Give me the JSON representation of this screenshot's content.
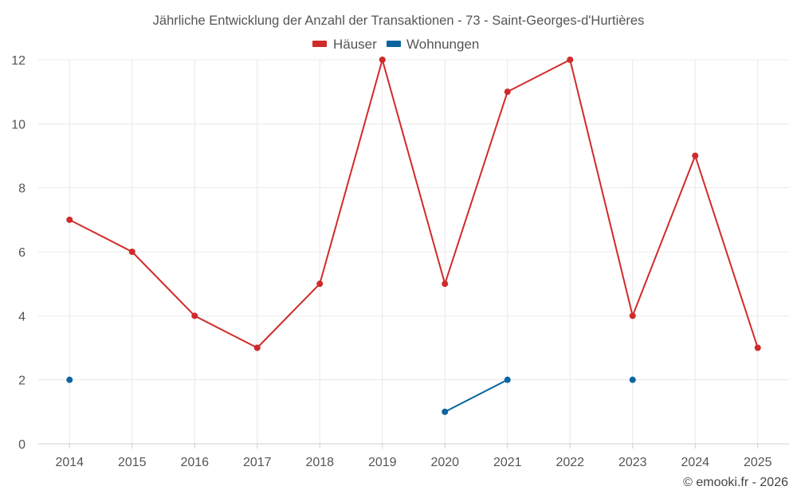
{
  "chart_data": {
    "type": "line",
    "title": "Jährliche Entwicklung der Anzahl der Transaktionen - 73 - Saint-Georges-d'Hurtières",
    "categories": [
      "2014",
      "2015",
      "2016",
      "2017",
      "2018",
      "2019",
      "2020",
      "2021",
      "2022",
      "2023",
      "2024",
      "2025"
    ],
    "series": [
      {
        "name": "Häuser",
        "color": "#d12a2a",
        "values": [
          7,
          6,
          4,
          3,
          5,
          12,
          5,
          11,
          12,
          4,
          9,
          3
        ]
      },
      {
        "name": "Wohnungen",
        "color": "#0a64a0",
        "values": [
          2,
          null,
          null,
          null,
          null,
          null,
          1,
          2,
          null,
          2,
          null,
          null
        ]
      }
    ],
    "xlabel": "",
    "ylabel": "",
    "ylim": [
      0,
      12
    ],
    "yticks": [
      0,
      2,
      4,
      6,
      8,
      10,
      12
    ],
    "grid": true,
    "legend": "top-center",
    "credit": "© emooki.fr - 2026"
  }
}
